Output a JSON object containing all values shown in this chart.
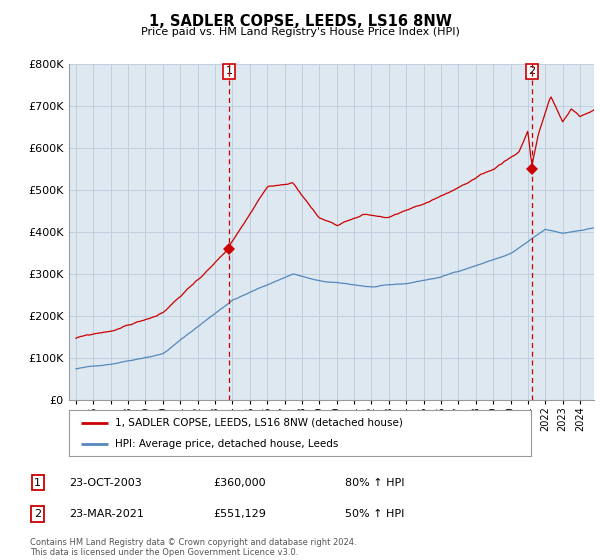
{
  "title": "1, SADLER COPSE, LEEDS, LS16 8NW",
  "subtitle": "Price paid vs. HM Land Registry's House Price Index (HPI)",
  "legend_label_red": "1, SADLER COPSE, LEEDS, LS16 8NW (detached house)",
  "legend_label_blue": "HPI: Average price, detached house, Leeds",
  "sale1_label": "1",
  "sale1_date": "23-OCT-2003",
  "sale1_price": "£360,000",
  "sale1_hpi": "80% ↑ HPI",
  "sale1_year": 2003.8,
  "sale1_value": 360000,
  "sale2_label": "2",
  "sale2_date": "23-MAR-2021",
  "sale2_price": "£551,129",
  "sale2_hpi": "50% ↑ HPI",
  "sale2_year": 2021.22,
  "sale2_value": 551129,
  "footer": "Contains HM Land Registry data © Crown copyright and database right 2024.\nThis data is licensed under the Open Government Licence v3.0.",
  "ylim": [
    0,
    800000
  ],
  "xlim_start": 1994.6,
  "xlim_end": 2024.8,
  "red_color": "#cc0000",
  "blue_color": "#5588bb",
  "chart_bg": "#dde8f0",
  "background_color": "#ffffff",
  "grid_color": "#bbccdd"
}
